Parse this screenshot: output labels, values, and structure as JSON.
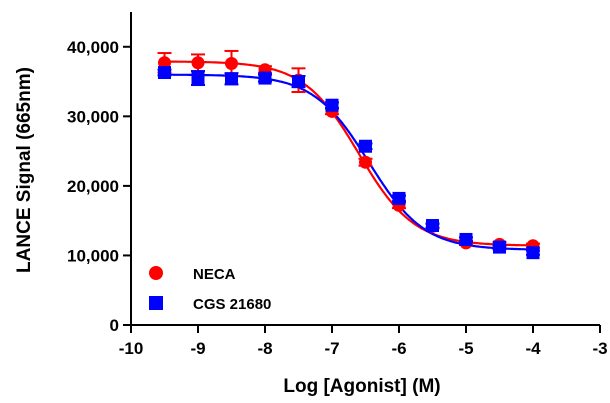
{
  "chart_data": {
    "type": "scatter",
    "title": "",
    "xlabel": "Log [Agonist] (M)",
    "ylabel": "LANCE Signal (665nm)",
    "xlim": [
      -10,
      -3
    ],
    "ylim": [
      0,
      45000
    ],
    "xticks": [
      -10,
      -9,
      -8,
      -7,
      -6,
      -5,
      -4,
      -3
    ],
    "xtick_labels": [
      "-10",
      "-9",
      "-8",
      "-7",
      "-6",
      "-5",
      "-4",
      "-3"
    ],
    "yticks": [
      0,
      10000,
      20000,
      30000,
      40000
    ],
    "ytick_labels": [
      "0",
      "10,000",
      "20,000",
      "30,000",
      "40,000"
    ],
    "grid": false,
    "legend_position": "bottom-left",
    "series": [
      {
        "name": "NECA",
        "color": "#ff0000",
        "marker": "circle",
        "x": [
          -9.5,
          -9.0,
          -8.5,
          -8.0,
          -7.5,
          -7.0,
          -6.5,
          -6.0,
          -5.5,
          -5.0,
          -4.5,
          -4.0
        ],
        "y": [
          37700,
          37700,
          37600,
          36700,
          35200,
          30700,
          23400,
          17200,
          14200,
          11800,
          11600,
          11400
        ],
        "error": [
          1400,
          1200,
          1800,
          500,
          1700,
          400,
          500,
          400,
          300,
          300,
          300,
          300
        ],
        "fit": {
          "top": 37900,
          "bottom": 11400,
          "logEC50": -6.6,
          "hill": -1.05
        }
      },
      {
        "name": "CGS 21680",
        "color": "#0000ff",
        "marker": "square",
        "x": [
          -9.5,
          -9.0,
          -8.5,
          -8.0,
          -7.5,
          -7.0,
          -6.5,
          -6.0,
          -5.5,
          -5.0,
          -4.5,
          -4.0
        ],
        "y": [
          36300,
          35500,
          35400,
          35500,
          35000,
          31600,
          25700,
          18200,
          14300,
          12300,
          11200,
          10400
        ],
        "error": [
          400,
          1000,
          800,
          500,
          800,
          400,
          400,
          400,
          300,
          300,
          300,
          300
        ],
        "fit": {
          "top": 36000,
          "bottom": 10800,
          "logEC50": -6.45,
          "hill": -1.05
        }
      }
    ]
  }
}
